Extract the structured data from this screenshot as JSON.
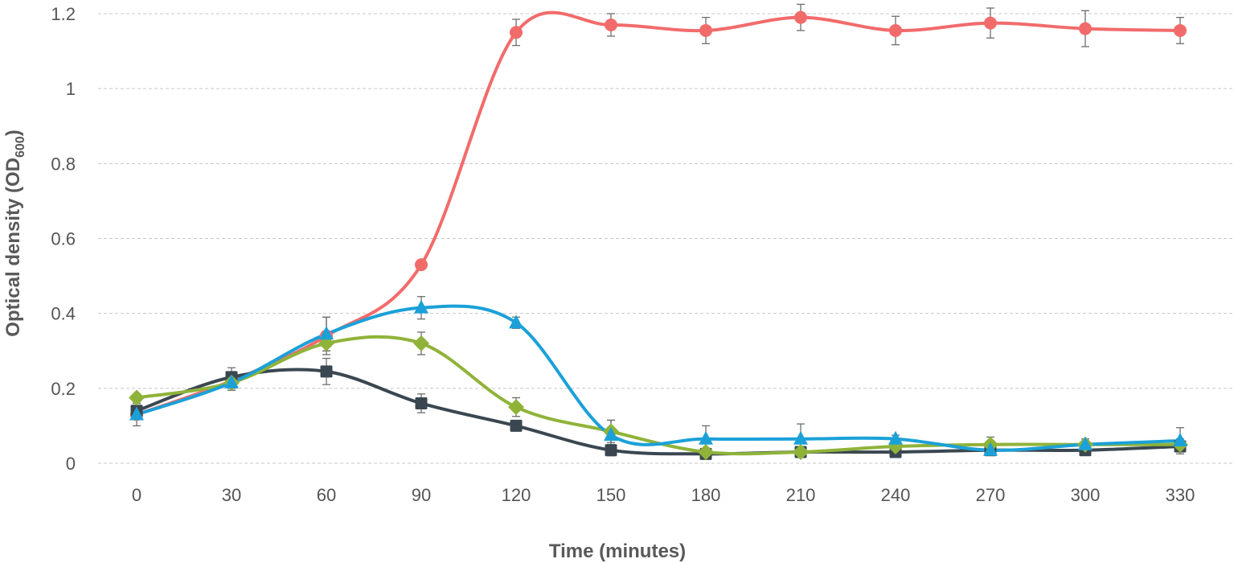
{
  "chart_data": {
    "type": "line",
    "xlabel": "Time (minutes)",
    "ylabel_main": "Optical density (OD",
    "ylabel_sub": "600",
    "ylabel_tail": ")",
    "x": [
      0,
      30,
      60,
      90,
      120,
      150,
      180,
      210,
      240,
      270,
      300,
      330
    ],
    "xlim": [
      0,
      330
    ],
    "ylim": [
      0,
      1.2
    ],
    "yticks": [
      0,
      0.2,
      0.4,
      0.6,
      0.8,
      1,
      1.2
    ],
    "ytick_labels": [
      "0",
      "0.2",
      "0.4",
      "0.6",
      "0.8",
      "1",
      "1.2"
    ],
    "grid": true,
    "series": [
      {
        "color": "#f26b6b",
        "marker": "circle",
        "values": [
          0.13,
          0.22,
          0.34,
          0.53,
          1.15,
          1.17,
          1.155,
          1.19,
          1.155,
          1.175,
          1.16,
          1.155
        ],
        "errors": [
          0.03,
          0.02,
          0.05,
          0.01,
          0.035,
          0.03,
          0.035,
          0.035,
          0.038,
          0.04,
          0.048,
          0.035
        ]
      },
      {
        "color": "#3a4750",
        "marker": "square",
        "values": [
          0.14,
          0.23,
          0.245,
          0.16,
          0.1,
          0.035,
          0.025,
          0.03,
          0.03,
          0.035,
          0.035,
          0.045
        ],
        "errors": [
          0.02,
          0.025,
          0.035,
          0.025,
          0.01,
          0.015,
          0.01,
          0.01,
          0.01,
          0.01,
          0.01,
          0.015
        ]
      },
      {
        "color": "#8fb339",
        "marker": "diamond",
        "values": [
          0.175,
          0.215,
          0.32,
          0.32,
          0.15,
          0.085,
          0.03,
          0.03,
          0.045,
          0.05,
          0.05,
          0.05
        ],
        "errors": [
          0.01,
          0.02,
          0.02,
          0.03,
          0.025,
          0.03,
          0.01,
          0.01,
          0.01,
          0.02,
          0.015,
          0.015
        ]
      },
      {
        "color": "#1ba1d8",
        "marker": "triangle",
        "values": [
          0.13,
          0.215,
          0.345,
          0.415,
          0.375,
          0.075,
          0.065,
          0.065,
          0.065,
          0.035,
          0.05,
          0.06
        ],
        "errors": [
          0.01,
          0.02,
          0.045,
          0.03,
          0.015,
          0.04,
          0.035,
          0.04,
          0.01,
          0.01,
          0.01,
          0.035
        ]
      }
    ]
  }
}
